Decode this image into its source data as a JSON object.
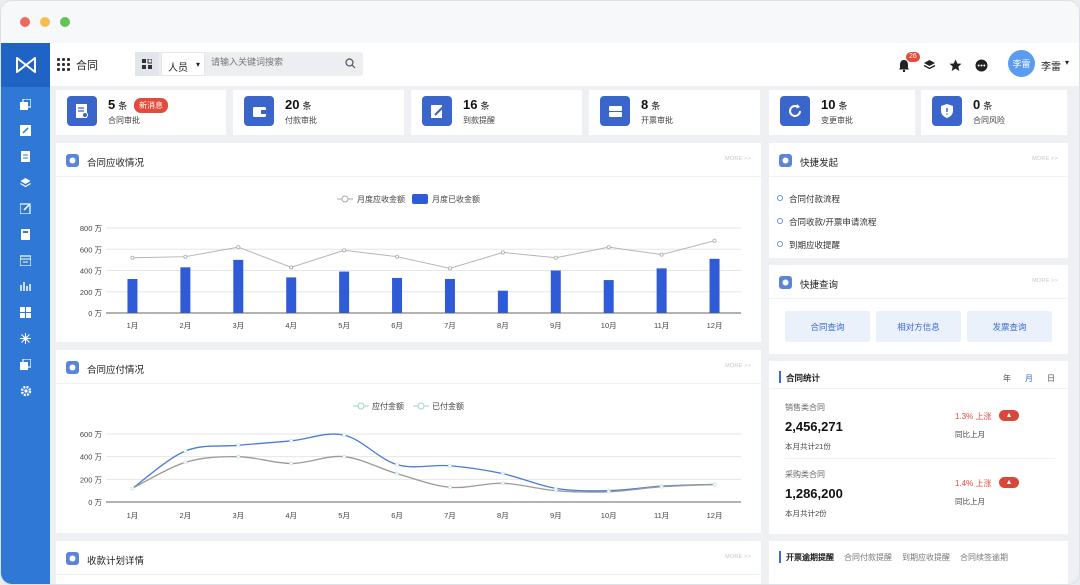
{
  "app": {
    "name": "合同"
  },
  "search": {
    "scope": "人员",
    "placeholder": "请输入关键词搜索"
  },
  "header": {
    "notification_count": "26",
    "user_initials": "李雷",
    "user_name": "李雷"
  },
  "stats": [
    {
      "count": "5",
      "unit": "条",
      "label": "合同审批",
      "badge": "新消息"
    },
    {
      "count": "20",
      "unit": "条",
      "label": "付款审批"
    },
    {
      "count": "16",
      "unit": "条",
      "label": "到款提醒"
    },
    {
      "count": "8",
      "unit": "条",
      "label": "开票审批"
    },
    {
      "count": "10",
      "unit": "条",
      "label": "变更审批"
    },
    {
      "count": "0",
      "unit": "条",
      "label": "合同风险"
    }
  ],
  "panels": {
    "receivable": {
      "title": "合同应收情况",
      "more": "MORE >>"
    },
    "payable": {
      "title": "合同应付情况",
      "more": "MORE >>"
    },
    "collection": {
      "title": "收款计划详情",
      "more": "MORE >>"
    },
    "quick_launch": {
      "title": "快捷发起",
      "more": "MORE >>",
      "items": [
        "合同付款流程",
        "合同收款/开票申请流程",
        "到期应收提醒"
      ]
    },
    "quick_query": {
      "title": "快捷查询",
      "more": "MORE >>",
      "buttons": [
        "合同查询",
        "相对方信息",
        "发票查询"
      ]
    },
    "contract_stats": {
      "title": "合同统计",
      "tabs": [
        "年",
        "月",
        "日"
      ],
      "active_tab": "月",
      "sales": {
        "label": "销售类合同",
        "value": "2,456,271",
        "sub": "本月共计21份",
        "trend": "1.3% 上涨",
        "trend_sub": "同比上月"
      },
      "purchase": {
        "label": "采购类合同",
        "value": "1,286,200",
        "sub": "本月共计2份",
        "trend": "1.4% 上涨",
        "trend_sub": "同比上月"
      }
    },
    "bottom_tabs": [
      "开票逾期提醒",
      "合同付款提醒",
      "到期应收提醒",
      "合同续签逾期"
    ]
  },
  "colors": {
    "primary": "#2f78d6",
    "accent": "#3a66cc",
    "bar": "#2f5bd6",
    "danger": "#e24a3b"
  },
  "chart_data": [
    {
      "type": "bar",
      "title": "",
      "categories": [
        "1月",
        "2月",
        "3月",
        "4月",
        "5月",
        "6月",
        "7月",
        "8月",
        "9月",
        "10月",
        "11月",
        "12月"
      ],
      "series": [
        {
          "name": "月度应收金额",
          "type": "line",
          "values": [
            520,
            530,
            620,
            430,
            590,
            530,
            420,
            570,
            520,
            620,
            550,
            680
          ]
        },
        {
          "name": "月度已收金额",
          "type": "bar",
          "values": [
            320,
            430,
            500,
            335,
            390,
            330,
            320,
            210,
            400,
            310,
            420,
            510
          ]
        }
      ],
      "yticks": [
        "0 万",
        "200 万",
        "400 万",
        "600 万",
        "800 万"
      ],
      "ylim": [
        0,
        800
      ],
      "grid": true,
      "legend": "top-center"
    },
    {
      "type": "line",
      "title": "",
      "categories": [
        "1月",
        "2月",
        "3月",
        "4月",
        "5月",
        "6月",
        "7月",
        "8月",
        "9月",
        "10月",
        "11月",
        "12月"
      ],
      "series": [
        {
          "name": "应付金额",
          "values": [
            120,
            450,
            500,
            540,
            590,
            330,
            320,
            250,
            120,
            100,
            140,
            155
          ]
        },
        {
          "name": "已付金额",
          "values": [
            120,
            350,
            400,
            340,
            400,
            250,
            130,
            165,
            100,
            90,
            135,
            155
          ]
        }
      ],
      "yticks": [
        "0 万",
        "200 万",
        "400 万",
        "600 万"
      ],
      "ylim": [
        0,
        600
      ],
      "grid": true,
      "legend": "top-center"
    }
  ]
}
